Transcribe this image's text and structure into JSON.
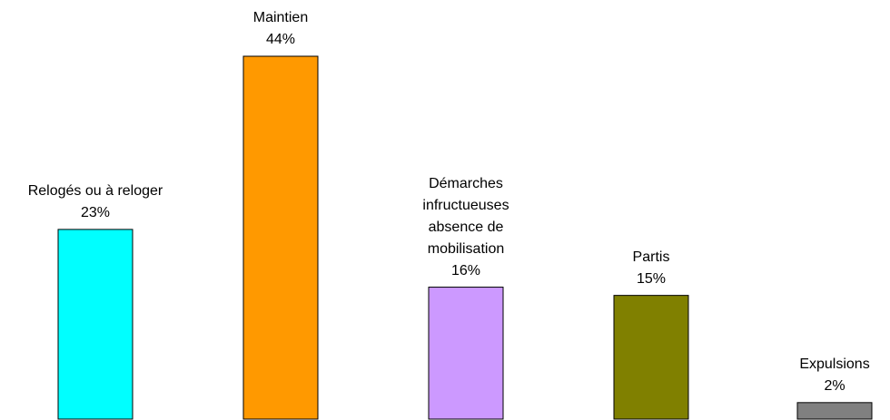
{
  "chart_data": {
    "type": "bar",
    "categories": [
      "Relogés ou à reloger",
      "Maintien",
      "Démarches\ninfructueuses\nabsence de\nmobilisation",
      "Partis",
      "Expulsions"
    ],
    "values": [
      23,
      44,
      16,
      15,
      2
    ],
    "value_labels": [
      "23%",
      "44%",
      "16%",
      "15%",
      "2%"
    ],
    "colors": [
      "#00ffff",
      "#ff9900",
      "#cc99ff",
      "#808000",
      "#808080"
    ]
  }
}
